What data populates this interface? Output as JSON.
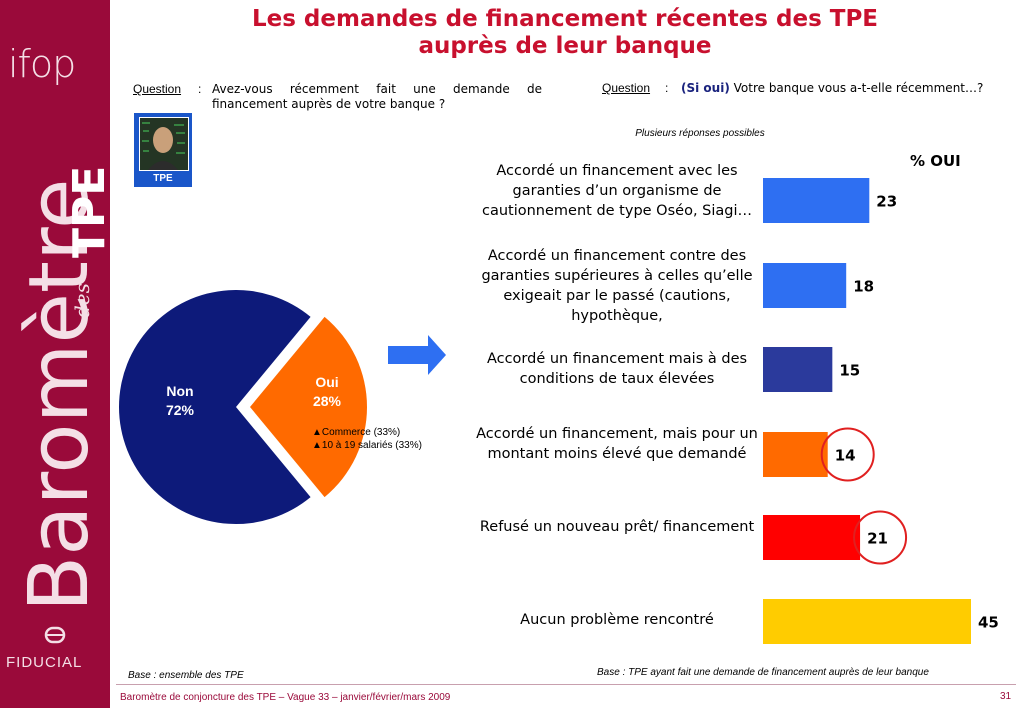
{
  "sidebar": {
    "logo_text": "ifop",
    "brand_word": "Baromètre",
    "des": "des",
    "tpe": "TPE",
    "fiducial": "FIDUCIAL"
  },
  "title": {
    "line1": "Les demandes de financement récentes des TPE",
    "line2": "auprès de leur banque"
  },
  "question_left": {
    "label": "Question",
    "colon": ":",
    "text": "Avez-vous récemment fait une demande de financement auprès de votre banque ?"
  },
  "question_right": {
    "label": "Question",
    "colon": ":",
    "highlight": "(Si oui)",
    "text": " Votre banque vous a-t-elle récemment…?",
    "note": "Plusieurs réponses possibles"
  },
  "tpe_badge": "TPE",
  "pie": {
    "non_label": "Non",
    "non_value": "72%",
    "oui_label": "Oui",
    "oui_value": "28%",
    "sub1": "Commerce (33%)",
    "sub2": "10 à 19 salariés (33%)"
  },
  "colors": {
    "brand": "#9a0a3a",
    "title": "#c8102e",
    "navy": "#0d1a7a",
    "orange": "#ff6a00"
  },
  "chart_data": [
    {
      "type": "pie",
      "categories": [
        "Non",
        "Oui"
      ],
      "values": [
        72,
        28
      ]
    },
    {
      "type": "bar",
      "orientation": "horizontal",
      "header": "% OUI",
      "categories": [
        "Accordé un financement avec les garanties d’un organisme de cautionnement de type Oséo, Siagi…",
        "Accordé un financement contre des garanties supérieures à celles qu’elle exigeait par le passé (cautions, hypothèque,",
        "Accordé un financement mais à des conditions de taux élevées",
        "Accordé un financement, mais pour un montant moins élevé que demandé",
        "Refusé un nouveau prêt/ financement",
        "Aucun problème rencontré"
      ],
      "values": [
        23,
        18,
        15,
        14,
        21,
        45
      ],
      "colors": [
        "#2e6ff2",
        "#2e6ff2",
        "#2b3a9c",
        "#ff6a00",
        "#ff0000",
        "#ffcc00"
      ],
      "circled": [
        false,
        false,
        false,
        true,
        true,
        false
      ]
    }
  ],
  "bar_labels": {
    "b0": "Accordé un financement avec les garanties d’un organisme de cautionnement de type Oséo, Siagi…",
    "b1": "Accordé un financement contre des garanties supérieures à celles qu’elle exigeait par le passé (cautions, hypothèque,",
    "b2": "Accordé un financement mais à des conditions de taux élevées",
    "b3": "Accordé un financement, mais pour un montant moins élevé que demandé",
    "b4": "Refusé un nouveau prêt/ financement",
    "b5": "Aucun problème rencontré"
  },
  "footer": {
    "base_left": "Base : ensemble des TPE",
    "base_right": "Base : TPE ayant fait une demande de financement auprès de leur banque",
    "survey": "Baromètre de conjoncture des TPE – Vague 33 – janvier/février/mars 2009",
    "page": "31"
  }
}
